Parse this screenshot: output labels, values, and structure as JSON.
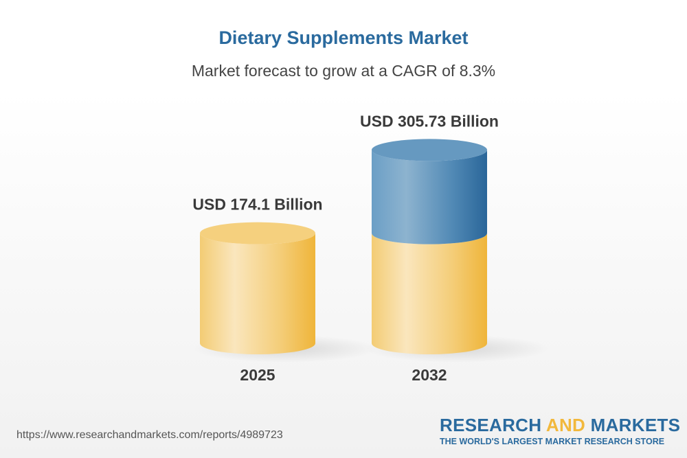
{
  "header": {
    "title": "Dietary Supplements Market",
    "subtitle": "Market forecast to grow at a CAGR of 8.3%"
  },
  "chart_data": {
    "type": "bar",
    "style": "3d-cylinder",
    "categories": [
      "2025",
      "2032"
    ],
    "values": [
      174.1,
      305.73
    ],
    "data_labels": [
      "USD 174.1 Billion",
      "USD 305.73 Billion"
    ],
    "unit": "USD Billion",
    "cagr": "8.3%",
    "colors": {
      "base": "#f2c15a",
      "growth": "#2e6a9b"
    },
    "grid": false
  },
  "footer": {
    "url": "https://www.researchandmarkets.com/reports/4989723",
    "logo_part1": "RESEARCH ",
    "logo_part2": "AND",
    "logo_part3": " MARKETS",
    "logo_tagline": "THE WORLD'S LARGEST MARKET RESEARCH STORE"
  }
}
